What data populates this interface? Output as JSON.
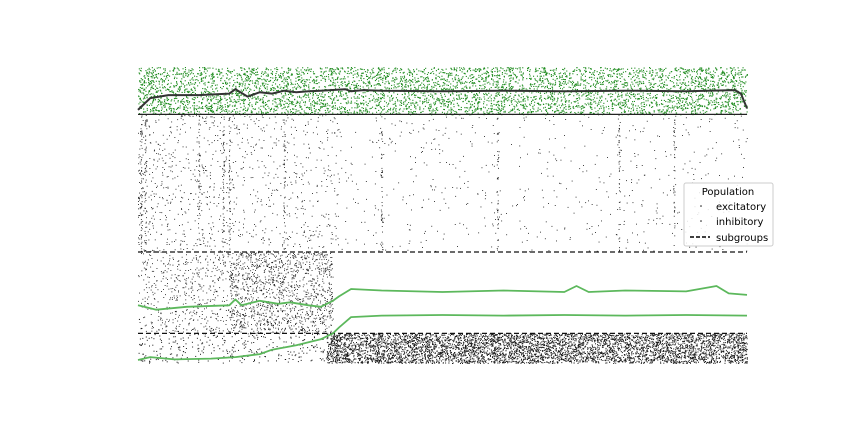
{
  "chart_data": {
    "type": "scatter",
    "title": "",
    "xlabel": "",
    "ylabel": "",
    "xlim": [
      0,
      1000
    ],
    "ylim": [
      0,
      1000
    ],
    "grid": false,
    "axes_visible": false,
    "legend": {
      "title": "Population",
      "placement": "right",
      "entries": [
        {
          "label": "excitatory",
          "marker": "dot",
          "color": "#1a1a1a"
        },
        {
          "label": "inhibitory",
          "marker": "dot",
          "color": "#1a1a1a"
        },
        {
          "label": "subgroups",
          "marker": "dashed-line",
          "color": "#000000"
        }
      ]
    },
    "subgroup_boundaries_y": [
      375,
      100
    ],
    "regions": [
      {
        "name": "top-band",
        "y_range": [
          1000,
          840
        ],
        "color": "#1e8c1e",
        "density": "dense-full"
      },
      {
        "name": "middle-band",
        "y_range": [
          840,
          375
        ],
        "color": "#1a1a1a",
        "density": "sparse"
      },
      {
        "name": "lower-band",
        "y_range": [
          375,
          100
        ],
        "color": "#1a1a1a",
        "density": "dense-until-x",
        "dense_until_x": 320
      },
      {
        "name": "bottom-band",
        "y_range": [
          100,
          0
        ],
        "color": "#1a1a1a",
        "density": "dense-after-x",
        "dense_after_x": 310
      }
    ],
    "series": [
      {
        "color": "#333333",
        "x": [
          0,
          20,
          50,
          100,
          150,
          160,
          180,
          200,
          220,
          240,
          260,
          280,
          300,
          340,
          350,
          370,
          400,
          500,
          600,
          700,
          800,
          900,
          980,
          990,
          1000
        ],
        "y": [
          855,
          895,
          905,
          905,
          910,
          925,
          900,
          915,
          910,
          920,
          915,
          918,
          920,
          925,
          918,
          922,
          920,
          918,
          920,
          918,
          920,
          918,
          922,
          910,
          860
        ]
      },
      {
        "color": "#5cb85c",
        "x": [
          0,
          30,
          80,
          150,
          160,
          170,
          200,
          230,
          250,
          280,
          300,
          320,
          330,
          350,
          400,
          500,
          600,
          700,
          720,
          740,
          800,
          900,
          950,
          970,
          1000
        ],
        "y": [
          195,
          180,
          190,
          195,
          215,
          195,
          210,
          200,
          205,
          195,
          190,
          210,
          225,
          250,
          245,
          240,
          245,
          240,
          260,
          240,
          245,
          242,
          260,
          235,
          230
        ]
      },
      {
        "color": "#5cb85c",
        "x": [
          0,
          20,
          60,
          120,
          160,
          200,
          220,
          260,
          300,
          320,
          330,
          350,
          400,
          500,
          600,
          700,
          800,
          900,
          1000
        ],
        "y": [
          10,
          20,
          12,
          15,
          20,
          30,
          45,
          60,
          80,
          100,
          120,
          155,
          160,
          162,
          160,
          162,
          160,
          162,
          160
        ]
      }
    ]
  }
}
